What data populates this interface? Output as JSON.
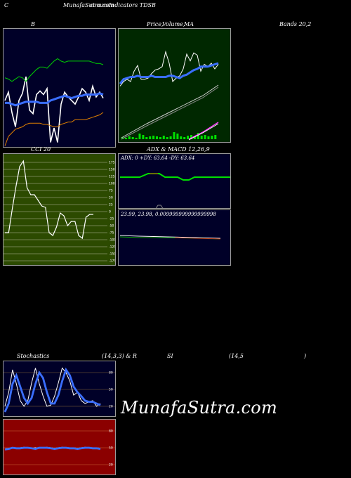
{
  "header": {
    "c": "C",
    "site": "MunafaSutra.com",
    "overlap": "common",
    "indicators": "Indicators TDSB"
  },
  "titles": {
    "b": "B",
    "price": "Price,",
    "volume": "Volume,",
    "ma": "MA",
    "bands": "Bands 20,2",
    "cci": "CCI 20",
    "adx_macd": "ADX  & MACD 12,26,9",
    "stochastics": "Stochastics",
    "stoch_params": "(14,3,3) & R",
    "si": "SI",
    "rsi_params": "(14,5",
    "close_paren": ")"
  },
  "values": {
    "adx_line": "ADX: 0  +DY: 63.64  -DY: 63.64",
    "macd_line": "23.99,  23.98,  0.009999999999999998"
  },
  "watermark": "MunafaSutra.com",
  "colors": {
    "navy": "#000028",
    "darkgreen": "#002800",
    "olive": "#2c4a00",
    "darkred": "#8b0000",
    "blue": "#3a6eff",
    "green": "#00d000",
    "lime": "#66ff00",
    "orange": "#e08000",
    "white": "#ffffff"
  },
  "chart_data": [
    {
      "type": "line",
      "name": "bollinger",
      "series": [
        {
          "color": "#ffffff",
          "values": [
            0.6,
            0.53,
            0.7,
            0.82,
            0.6,
            0.54,
            0.4,
            0.68,
            0.71,
            0.55,
            0.52,
            0.55,
            0.5,
            0.95,
            0.83,
            0.95,
            0.63,
            0.53,
            0.57,
            0.6,
            0.63,
            0.57,
            0.5,
            0.53,
            0.6,
            0.48,
            0.57,
            0.53,
            0.58
          ]
        },
        {
          "color": "#3a6eff",
          "values": [
            0.62,
            0.62,
            0.63,
            0.64,
            0.63,
            0.62,
            0.61,
            0.61,
            0.61,
            0.61,
            0.62,
            0.62,
            0.62,
            0.6,
            0.59,
            0.58,
            0.57,
            0.56,
            0.57,
            0.58,
            0.57,
            0.56,
            0.56,
            0.55,
            0.55,
            0.55,
            0.55,
            0.54,
            0.55
          ]
        },
        {
          "color": "#00d000",
          "values": [
            0.41,
            0.42,
            0.44,
            0.42,
            0.4,
            0.41,
            0.44,
            0.4,
            0.37,
            0.34,
            0.32,
            0.32,
            0.33,
            0.3,
            0.27,
            0.25,
            0.27,
            0.28,
            0.27,
            0.27,
            0.27,
            0.27,
            0.27,
            0.27,
            0.27,
            0.28,
            0.29,
            0.29,
            0.3
          ]
        },
        {
          "color": "#e08000",
          "values": [
            0.98,
            0.9,
            0.87,
            0.84,
            0.83,
            0.82,
            0.8,
            0.79,
            0.79,
            0.79,
            0.79,
            0.8,
            0.8,
            0.81,
            0.82,
            0.82,
            0.8,
            0.79,
            0.78,
            0.78,
            0.76,
            0.76,
            0.76,
            0.76,
            0.75,
            0.74,
            0.73,
            0.72,
            0.7
          ]
        }
      ]
    },
    {
      "type": "line",
      "name": "price-volume-ma",
      "series": [
        {
          "color": "#ffffff",
          "values": [
            0.5,
            0.46,
            0.44,
            0.46,
            0.37,
            0.32,
            0.44,
            0.44,
            0.43,
            0.39,
            0.36,
            0.35,
            0.33,
            0.2,
            0.3,
            0.46,
            0.43,
            0.41,
            0.35,
            0.22,
            0.28,
            0.21,
            0.23,
            0.37,
            0.31,
            0.33,
            0.3,
            0.35,
            0.31
          ]
        },
        {
          "color": "#3a6eff",
          "values": [
            0.48,
            0.44,
            0.43,
            0.42,
            0.42,
            0.41,
            0.42,
            0.42,
            0.42,
            0.41,
            0.42,
            0.42,
            0.42,
            0.42,
            0.41,
            0.41,
            0.42,
            0.43,
            0.41,
            0.4,
            0.38,
            0.36,
            0.35,
            0.33,
            0.33,
            0.33,
            0.32,
            0.31,
            0.3
          ]
        }
      ]
    },
    {
      "type": "line",
      "name": "cci",
      "ticks": [
        "175",
        "150",
        "125",
        "100",
        "75",
        "50",
        "25",
        "0",
        "-25",
        "-50",
        "-75",
        "-100",
        "-125",
        "-150",
        "-175"
      ],
      "values": [
        -75,
        -75,
        10,
        90,
        160,
        180,
        85,
        60,
        60,
        40,
        20,
        15,
        -75,
        -85,
        -55,
        -5,
        -15,
        -50,
        -35,
        -35,
        -85,
        -95,
        -20,
        -10,
        -10
      ]
    },
    {
      "type": "line",
      "name": "adx",
      "series": [
        {
          "color": "#00e000",
          "values": [
            0.43,
            0.43,
            0.43,
            0.43,
            0.43,
            0.43,
            0.43,
            0.43,
            0.43,
            0.43,
            0.43,
            0.43,
            0.43,
            0.43,
            0.43,
            0.43,
            0.43,
            0.43,
            0.43,
            0.43,
            0.43,
            0.43,
            0.43,
            0.43,
            0.43,
            0.43,
            0.43,
            0.43,
            0.43
          ]
        }
      ]
    },
    {
      "type": "line",
      "name": "stochastics",
      "ticks": [
        "80",
        "50",
        "20"
      ],
      "series": [
        {
          "color": "#ffffff",
          "values": [
            20,
            45,
            85,
            60,
            30,
            20,
            30,
            62,
            88,
            60,
            38,
            20,
            22,
            38,
            62,
            88,
            80,
            65,
            40,
            45,
            30,
            25,
            28,
            30,
            20,
            25
          ]
        },
        {
          "color": "#3a6eff",
          "values": [
            10,
            25,
            60,
            75,
            55,
            35,
            25,
            35,
            60,
            80,
            70,
            45,
            25,
            25,
            40,
            65,
            85,
            75,
            55,
            45,
            38,
            30,
            28,
            28,
            25,
            22
          ]
        }
      ]
    },
    {
      "type": "line",
      "name": "rsi",
      "ticks": [
        "80",
        "50",
        "20"
      ],
      "series": [
        {
          "color": "#ffffff",
          "values": [
            48,
            49,
            50,
            49,
            50,
            51,
            50,
            49,
            50,
            49,
            50,
            51,
            50,
            49,
            50,
            51,
            50,
            49,
            50,
            49,
            50,
            51,
            50,
            49,
            50,
            49
          ]
        },
        {
          "color": "#3a6eff",
          "values": [
            47,
            48,
            50,
            49,
            49,
            50,
            50,
            49,
            48,
            50,
            50,
            50,
            49,
            48,
            49,
            50,
            50,
            49,
            49,
            48,
            49,
            50,
            50,
            49,
            49,
            48
          ]
        }
      ]
    }
  ]
}
